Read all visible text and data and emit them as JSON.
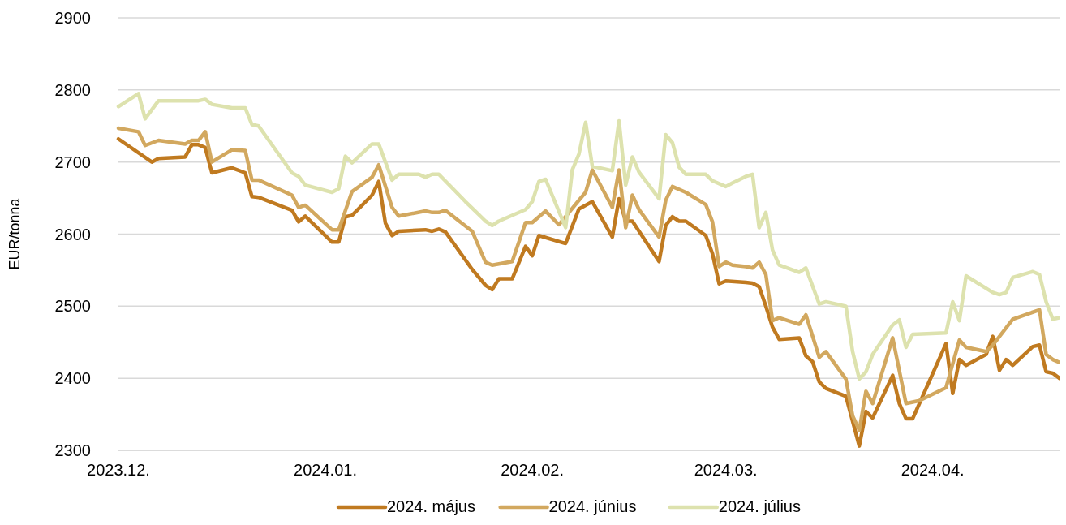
{
  "chart_data": {
    "type": "line",
    "ylabel": "EUR/tonna",
    "xlim": [
      "2023-12-01",
      "2024-04-20"
    ],
    "xticks": [
      {
        "value": "2023-12-01",
        "label": "2023.12."
      },
      {
        "value": "2024-01-01",
        "label": "2024.01."
      },
      {
        "value": "2024-02-01",
        "label": "2024.02."
      },
      {
        "value": "2024-03-01",
        "label": "2024.03."
      },
      {
        "value": "2024-04-01",
        "label": "2024.04."
      }
    ],
    "ylim": [
      2300,
      2900
    ],
    "yticks": [
      2300,
      2400,
      2500,
      2600,
      2700,
      2800,
      2900
    ],
    "grid": "y",
    "legend": "bottom",
    "marker": "none",
    "line_style": "solid",
    "series": [
      {
        "name": "2024. május",
        "color": "#c07a20",
        "x": [
          "2023-12-01",
          "2023-12-06",
          "2023-12-07",
          "2023-12-11",
          "2023-12-12",
          "2023-12-13",
          "2023-12-14",
          "2023-12-15",
          "2023-12-18",
          "2023-12-20",
          "2023-12-21",
          "2023-12-22",
          "2023-12-27",
          "2023-12-28",
          "2023-12-29",
          "2024-01-02",
          "2024-01-03",
          "2024-01-04",
          "2024-01-05",
          "2024-01-08",
          "2024-01-09",
          "2024-01-10",
          "2024-01-11",
          "2024-01-12",
          "2024-01-16",
          "2024-01-17",
          "2024-01-18",
          "2024-01-19",
          "2024-01-23",
          "2024-01-25",
          "2024-01-26",
          "2024-01-27",
          "2024-01-29",
          "2024-01-31",
          "2024-02-01",
          "2024-02-02",
          "2024-02-06",
          "2024-02-08",
          "2024-02-10",
          "2024-02-13",
          "2024-02-14",
          "2024-02-15",
          "2024-02-16",
          "2024-02-20",
          "2024-02-21",
          "2024-02-22",
          "2024-02-23",
          "2024-02-24",
          "2024-02-27",
          "2024-02-28",
          "2024-02-29",
          "2024-03-01",
          "2024-03-04",
          "2024-03-05",
          "2024-03-06",
          "2024-03-07",
          "2024-03-08",
          "2024-03-09",
          "2024-03-12",
          "2024-03-13",
          "2024-03-14",
          "2024-03-15",
          "2024-03-16",
          "2024-03-19",
          "2024-03-21",
          "2024-03-22",
          "2024-03-23",
          "2024-03-26",
          "2024-03-27",
          "2024-03-28",
          "2024-03-29",
          "2024-04-03",
          "2024-04-04",
          "2024-04-05",
          "2024-04-06",
          "2024-04-09",
          "2024-04-10",
          "2024-04-11",
          "2024-04-12",
          "2024-04-13",
          "2024-04-16",
          "2024-04-17",
          "2024-04-18",
          "2024-04-19",
          "2024-04-20"
        ],
        "values": [
          2732,
          2700,
          2705,
          2707,
          2724,
          2724,
          2720,
          2685,
          2692,
          2685,
          2652,
          2651,
          2633,
          2617,
          2625,
          2589,
          2589,
          2624,
          2626,
          2654,
          2673,
          2615,
          2598,
          2604,
          2606,
          2604,
          2607,
          2603,
          2551,
          2529,
          2523,
          2538,
          2538,
          2583,
          2570,
          2598,
          2587,
          2635,
          2645,
          2596,
          2649,
          2618,
          2618,
          2562,
          2612,
          2624,
          2618,
          2618,
          2598,
          2573,
          2531,
          2535,
          2533,
          2532,
          2527,
          2500,
          2471,
          2454,
          2456,
          2431,
          2423,
          2395,
          2386,
          2375,
          2306,
          2354,
          2345,
          2404,
          2365,
          2344,
          2344,
          2448,
          2379,
          2426,
          2418,
          2433,
          2458,
          2411,
          2426,
          2418,
          2444,
          2446,
          2409,
          2407,
          2400
        ]
      },
      {
        "name": "2024. június",
        "color": "#d2a85f",
        "x": [
          "2023-12-01",
          "2023-12-04",
          "2023-12-05",
          "2023-12-07",
          "2023-12-11",
          "2023-12-12",
          "2023-12-13",
          "2023-12-14",
          "2023-12-15",
          "2023-12-18",
          "2023-12-20",
          "2023-12-21",
          "2023-12-22",
          "2023-12-27",
          "2023-12-28",
          "2023-12-29",
          "2024-01-02",
          "2024-01-03",
          "2024-01-05",
          "2024-01-08",
          "2024-01-09",
          "2024-01-11",
          "2024-01-12",
          "2024-01-16",
          "2024-01-17",
          "2024-01-18",
          "2024-01-19",
          "2024-01-23",
          "2024-01-25",
          "2024-01-26",
          "2024-01-29",
          "2024-01-31",
          "2024-02-01",
          "2024-02-03",
          "2024-02-05",
          "2024-02-08",
          "2024-02-09",
          "2024-02-10",
          "2024-02-13",
          "2024-02-14",
          "2024-02-15",
          "2024-02-16",
          "2024-02-17",
          "2024-02-20",
          "2024-02-21",
          "2024-02-22",
          "2024-02-24",
          "2024-02-27",
          "2024-02-28",
          "2024-02-29",
          "2024-03-01",
          "2024-03-02",
          "2024-03-04",
          "2024-03-05",
          "2024-03-06",
          "2024-03-07",
          "2024-03-08",
          "2024-03-09",
          "2024-03-12",
          "2024-03-13",
          "2024-03-15",
          "2024-03-16",
          "2024-03-19",
          "2024-03-20",
          "2024-03-21",
          "2024-03-22",
          "2024-03-23",
          "2024-03-26",
          "2024-03-28",
          "2024-03-30",
          "2024-04-03",
          "2024-04-05",
          "2024-04-06",
          "2024-04-09",
          "2024-04-10",
          "2024-04-13",
          "2024-04-17",
          "2024-04-18",
          "2024-04-19",
          "2024-04-20"
        ],
        "values": [
          2747,
          2742,
          2723,
          2730,
          2725,
          2730,
          2730,
          2742,
          2700,
          2717,
          2716,
          2675,
          2675,
          2654,
          2637,
          2640,
          2606,
          2606,
          2659,
          2679,
          2696,
          2637,
          2625,
          2632,
          2630,
          2630,
          2633,
          2604,
          2561,
          2557,
          2562,
          2616,
          2616,
          2632,
          2613,
          2647,
          2658,
          2689,
          2637,
          2689,
          2609,
          2654,
          2634,
          2596,
          2647,
          2666,
          2658,
          2641,
          2617,
          2555,
          2561,
          2557,
          2555,
          2553,
          2561,
          2544,
          2480,
          2484,
          2475,
          2488,
          2429,
          2437,
          2399,
          2348,
          2328,
          2382,
          2365,
          2456,
          2365,
          2369,
          2387,
          2453,
          2443,
          2437,
          2446,
          2482,
          2495,
          2433,
          2426,
          2422
        ]
      },
      {
        "name": "2024. július",
        "color": "#dde2ae",
        "x": [
          "2023-12-01",
          "2023-12-04",
          "2023-12-05",
          "2023-12-07",
          "2023-12-13",
          "2023-12-14",
          "2023-12-15",
          "2023-12-18",
          "2023-12-20",
          "2023-12-21",
          "2023-12-22",
          "2023-12-27",
          "2023-12-28",
          "2023-12-29",
          "2024-01-02",
          "2024-01-03",
          "2024-01-04",
          "2024-01-05",
          "2024-01-08",
          "2024-01-09",
          "2024-01-11",
          "2024-01-12",
          "2024-01-15",
          "2024-01-16",
          "2024-01-17",
          "2024-01-18",
          "2024-01-22",
          "2024-01-25",
          "2024-01-26",
          "2024-01-27",
          "2024-01-31",
          "2024-02-01",
          "2024-02-02",
          "2024-02-03",
          "2024-02-06",
          "2024-02-07",
          "2024-02-08",
          "2024-02-09",
          "2024-02-10",
          "2024-02-13",
          "2024-02-14",
          "2024-02-15",
          "2024-02-16",
          "2024-02-17",
          "2024-02-20",
          "2024-02-21",
          "2024-02-22",
          "2024-02-23",
          "2024-02-24",
          "2024-02-27",
          "2024-02-28",
          "2024-03-01",
          "2024-03-02",
          "2024-03-04",
          "2024-03-05",
          "2024-03-06",
          "2024-03-07",
          "2024-03-08",
          "2024-03-09",
          "2024-03-12",
          "2024-03-13",
          "2024-03-15",
          "2024-03-16",
          "2024-03-19",
          "2024-03-20",
          "2024-03-21",
          "2024-03-22",
          "2024-03-23",
          "2024-03-26",
          "2024-03-27",
          "2024-03-28",
          "2024-03-29",
          "2024-04-03",
          "2024-04-04",
          "2024-04-05",
          "2024-04-06",
          "2024-04-10",
          "2024-04-11",
          "2024-04-12",
          "2024-04-13",
          "2024-04-16",
          "2024-04-17",
          "2024-04-18",
          "2024-04-19",
          "2024-04-20"
        ],
        "values": [
          2777,
          2795,
          2760,
          2785,
          2785,
          2787,
          2780,
          2775,
          2775,
          2752,
          2750,
          2685,
          2680,
          2668,
          2658,
          2663,
          2708,
          2699,
          2725,
          2725,
          2675,
          2683,
          2683,
          2679,
          2683,
          2683,
          2645,
          2618,
          2612,
          2618,
          2634,
          2645,
          2673,
          2676,
          2609,
          2689,
          2711,
          2755,
          2694,
          2688,
          2757,
          2668,
          2707,
          2686,
          2649,
          2738,
          2727,
          2693,
          2683,
          2683,
          2674,
          2666,
          2671,
          2680,
          2683,
          2609,
          2630,
          2578,
          2557,
          2547,
          2553,
          2503,
          2506,
          2500,
          2437,
          2399,
          2409,
          2433,
          2474,
          2481,
          2443,
          2461,
          2463,
          2506,
          2480,
          2542,
          2519,
          2516,
          2519,
          2540,
          2548,
          2544,
          2506,
          2482,
          2484
        ]
      }
    ]
  }
}
